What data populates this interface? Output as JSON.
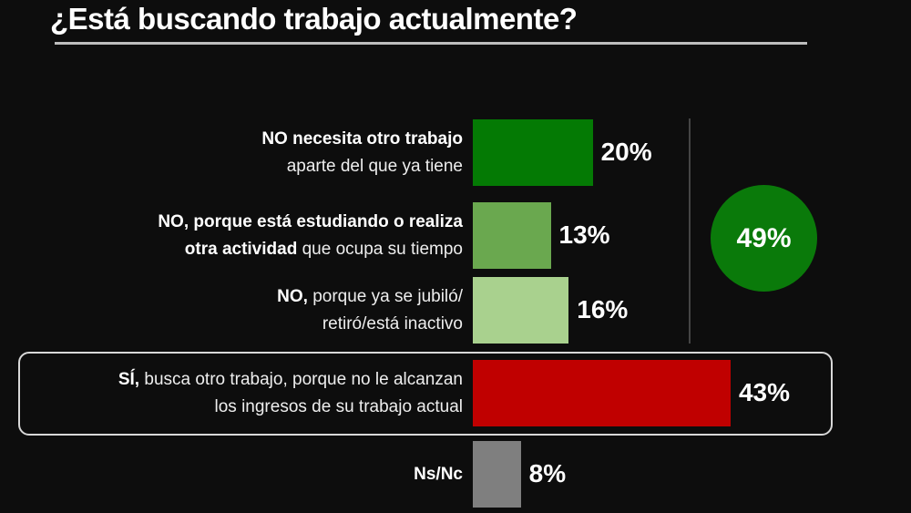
{
  "chart_data": {
    "type": "bar",
    "orientation": "horizontal",
    "title": "¿Está buscando trabajo actualmente?",
    "categories": [
      [
        {
          "t": "NO necesita otro trabajo",
          "b": true
        },
        {
          "br": true
        },
        {
          "t": "aparte del que ya tiene",
          "b": false
        }
      ],
      [
        {
          "t": "NO, porque está estudiando o realiza",
          "b": true
        },
        {
          "br": true
        },
        {
          "t": "otra actividad",
          "b": true
        },
        {
          "t": " que ocupa su tiempo",
          "b": false
        }
      ],
      [
        {
          "t": "NO,",
          "b": true
        },
        {
          "t": " porque ya se jubiló/",
          "b": false
        },
        {
          "br": true
        },
        {
          "t": "retiró/está inactivo",
          "b": false
        }
      ],
      [
        {
          "t": "SÍ,",
          "b": true
        },
        {
          "t": " busca otro trabajo, porque no le alcanzan",
          "b": false
        },
        {
          "br": true
        },
        {
          "t": "los ingresos de su trabajo actual",
          "b": false
        }
      ],
      [
        {
          "t": "Ns/Nc",
          "b": true
        }
      ]
    ],
    "values": [
      20,
      13,
      16,
      43,
      8
    ],
    "value_labels": [
      "20%",
      "13%",
      "16%",
      "43%",
      "8%"
    ],
    "colors": [
      "#047a04",
      "#6aa84f",
      "#a9d18e",
      "#c00000",
      "#7f7f7f"
    ],
    "group_total": {
      "label": "49%",
      "value": 49,
      "color": "#0a7a0a",
      "covers": [
        0,
        1,
        2
      ]
    },
    "highlighted_category": 3,
    "xlim": [
      0,
      45
    ],
    "grid": false,
    "legend": "none"
  }
}
